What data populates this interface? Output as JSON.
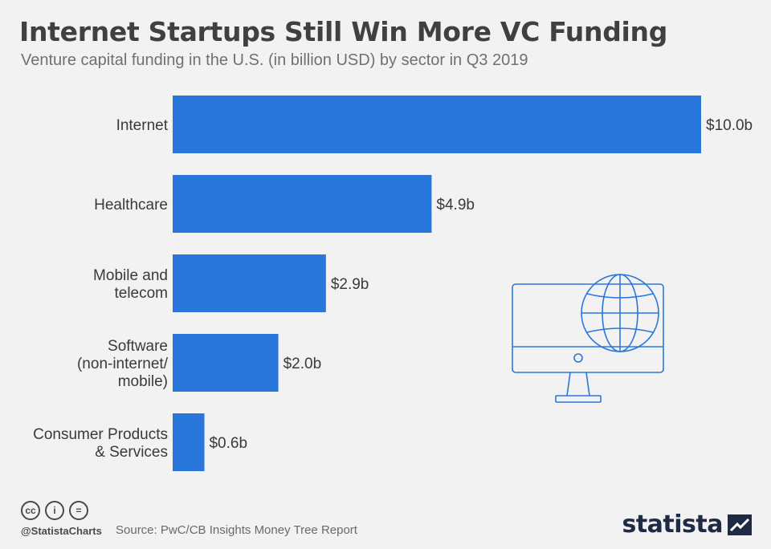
{
  "title": "Internet Startups Still Win More VC Funding",
  "subtitle": "Venture capital funding in the U.S. (in billion USD) by sector in Q3 2019",
  "footer": {
    "handle": "@StatistaCharts",
    "source": "Source: PwC/CB Insights Money Tree Report",
    "brand": "statista",
    "cc_icons": [
      "cc",
      "i",
      "="
    ]
  },
  "colors": {
    "bar": "#2a77dc",
    "background": "#f2f2f2",
    "illustration": "#2a77dc"
  },
  "chart_data": {
    "type": "bar",
    "orientation": "horizontal",
    "categories": [
      [
        "Internet"
      ],
      [
        "Healthcare"
      ],
      [
        "Mobile and",
        "telecom"
      ],
      [
        "Software",
        "(non-internet/",
        "mobile)"
      ],
      [
        "Consumer Products",
        "& Services"
      ]
    ],
    "values": [
      10.0,
      4.9,
      2.9,
      2.0,
      0.6
    ],
    "value_labels": [
      "$10.0b",
      "$4.9b",
      "$2.9b",
      "$2.0b",
      "$0.6b"
    ],
    "title": "Internet Startups Still Win More VC Funding",
    "xlabel": "",
    "ylabel": "",
    "xlim": [
      0,
      10.0
    ],
    "grid": false,
    "legend": "none"
  }
}
